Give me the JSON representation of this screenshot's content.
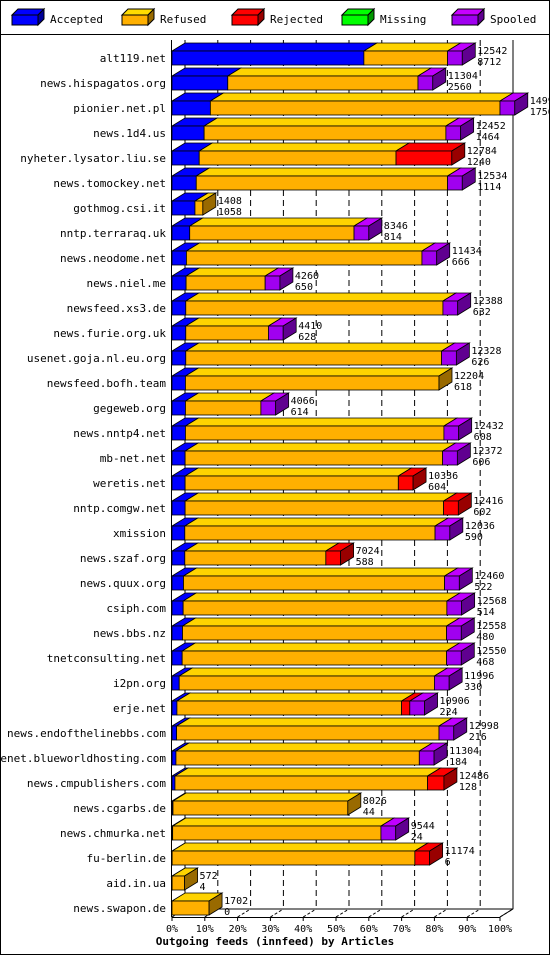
{
  "chart_data": {
    "type": "bar",
    "orientation": "horizontal",
    "stacked": true,
    "xlabel": "Outgoing feeds (innfeed) by Articles",
    "x_ticks": [
      "0%",
      "10%",
      "20%",
      "30%",
      "40%",
      "50%",
      "60%",
      "70%",
      "80%",
      "90%",
      "100%"
    ],
    "xlim": [
      0,
      100
    ],
    "legend_position": "top",
    "series_meta": [
      {
        "name": "Accepted",
        "color": "#0000FF"
      },
      {
        "name": "Refused",
        "color": "#FFB000"
      },
      {
        "name": "Rejected",
        "color": "#FF0000"
      },
      {
        "name": "Missing",
        "color": "#00FF00"
      },
      {
        "name": "Spooled",
        "color": "#A000F0"
      }
    ],
    "rows": [
      {
        "host": "alt119.net",
        "offered": "12542",
        "accepted": "8712",
        "pct": [
          58.5,
          25.5,
          0,
          0,
          4.5
        ]
      },
      {
        "host": "news.hispagatos.org",
        "offered": "11304",
        "accepted": "2560",
        "pct": [
          17.0,
          58.0,
          0,
          0,
          4.5
        ]
      },
      {
        "host": "pionier.net.pl",
        "offered": "14998",
        "accepted": "1756",
        "pct": [
          11.7,
          88.3,
          0,
          0,
          4.5
        ]
      },
      {
        "host": "news.1d4.us",
        "offered": "12452",
        "accepted": "1464",
        "pct": [
          9.8,
          73.7,
          0,
          0,
          4.5
        ]
      },
      {
        "host": "nyheter.lysator.liu.se",
        "offered": "12784",
        "accepted": "1240",
        "pct": [
          8.3,
          60.0,
          17.0,
          0,
          0
        ]
      },
      {
        "host": "news.tomockey.net",
        "offered": "12534",
        "accepted": "1114",
        "pct": [
          7.4,
          76.6,
          0,
          0,
          4.5
        ]
      },
      {
        "host": "gothmog.csi.it",
        "offered": "1408",
        "accepted": "1058",
        "pct": [
          7.0,
          2.4,
          0,
          0,
          0
        ]
      },
      {
        "host": "nntp.terraraq.uk",
        "offered": "8346",
        "accepted": "814",
        "pct": [
          5.4,
          50.1,
          0,
          0,
          4.5
        ]
      },
      {
        "host": "news.neodome.net",
        "offered": "11434",
        "accepted": "666",
        "pct": [
          4.4,
          71.8,
          0,
          0,
          4.5
        ]
      },
      {
        "host": "news.niel.me",
        "offered": "4260",
        "accepted": "650",
        "pct": [
          4.3,
          24.1,
          0,
          0,
          4.5
        ]
      },
      {
        "host": "newsfeed.xs3.de",
        "offered": "12388",
        "accepted": "632",
        "pct": [
          4.2,
          78.4,
          0,
          0,
          4.5
        ]
      },
      {
        "host": "news.furie.org.uk",
        "offered": "4410",
        "accepted": "628",
        "pct": [
          4.2,
          25.2,
          0,
          0,
          4.5
        ]
      },
      {
        "host": "usenet.goja.nl.eu.org",
        "offered": "12328",
        "accepted": "626",
        "pct": [
          4.2,
          78.0,
          0,
          0,
          4.5
        ]
      },
      {
        "host": "newsfeed.bofh.team",
        "offered": "12204",
        "accepted": "618",
        "pct": [
          4.1,
          77.3,
          0,
          0,
          0
        ]
      },
      {
        "host": "gegeweb.org",
        "offered": "4066",
        "accepted": "614",
        "pct": [
          4.1,
          23.0,
          0,
          0,
          4.5
        ]
      },
      {
        "host": "news.nntp4.net",
        "offered": "12432",
        "accepted": "608",
        "pct": [
          4.1,
          78.8,
          0,
          0,
          4.5
        ]
      },
      {
        "host": "mb-net.net",
        "offered": "12372",
        "accepted": "606",
        "pct": [
          4.0,
          78.5,
          0,
          0,
          4.5
        ]
      },
      {
        "host": "weretis.net",
        "offered": "10336",
        "accepted": "604",
        "pct": [
          4.0,
          65.0,
          4.5,
          0,
          0
        ]
      },
      {
        "host": "nntp.comgw.net",
        "offered": "12416",
        "accepted": "602",
        "pct": [
          4.0,
          78.8,
          4.5,
          0,
          0
        ]
      },
      {
        "host": "xmission",
        "offered": "12036",
        "accepted": "590",
        "pct": [
          3.9,
          76.3,
          0,
          0,
          4.5
        ]
      },
      {
        "host": "news.szaf.org",
        "offered": "7024",
        "accepted": "588",
        "pct": [
          3.9,
          43.0,
          4.5,
          0,
          0
        ]
      },
      {
        "host": "news.quux.org",
        "offered": "12460",
        "accepted": "522",
        "pct": [
          3.5,
          79.6,
          0,
          0,
          4.5
        ]
      },
      {
        "host": "csiph.com",
        "offered": "12568",
        "accepted": "514",
        "pct": [
          3.4,
          80.4,
          0,
          0,
          4.5
        ]
      },
      {
        "host": "news.bbs.nz",
        "offered": "12558",
        "accepted": "480",
        "pct": [
          3.2,
          80.5,
          0,
          0,
          4.5
        ]
      },
      {
        "host": "tnetconsulting.net",
        "offered": "12550",
        "accepted": "468",
        "pct": [
          3.1,
          80.6,
          0,
          0,
          4.5
        ]
      },
      {
        "host": "i2pn.org",
        "offered": "11996",
        "accepted": "330",
        "pct": [
          2.2,
          77.8,
          0,
          0,
          4.5
        ]
      },
      {
        "host": "erje.net",
        "offered": "10906",
        "accepted": "224",
        "pct": [
          1.5,
          68.5,
          2.5,
          0,
          4.5
        ]
      },
      {
        "host": "news.endofthelinebbs.com",
        "offered": "12998",
        "accepted": "216",
        "pct": [
          1.4,
          80.0,
          0,
          0,
          4.5
        ]
      },
      {
        "host": "usenet.blueworldhosting.com",
        "offered": "11304",
        "accepted": "184",
        "pct": [
          1.2,
          74.2,
          0,
          0,
          4.5
        ]
      },
      {
        "host": "news.cmpublishers.com",
        "offered": "12486",
        "accepted": "128",
        "pct": [
          0.9,
          77.0,
          5.0,
          0,
          0
        ]
      },
      {
        "host": "news.cgarbs.de",
        "offered": "8026",
        "accepted": "44",
        "pct": [
          0.3,
          53.3,
          0,
          0,
          0
        ]
      },
      {
        "host": "news.chmurka.net",
        "offered": "9544",
        "accepted": "24",
        "pct": [
          0.2,
          63.5,
          0,
          0,
          4.5
        ]
      },
      {
        "host": "fu-berlin.de",
        "offered": "11174",
        "accepted": "6",
        "pct": [
          0.04,
          74.0,
          4.5,
          0,
          0
        ]
      },
      {
        "host": "aid.in.ua",
        "offered": "572",
        "accepted": "4",
        "pct": [
          0.03,
          3.8,
          0,
          0,
          0
        ]
      },
      {
        "host": "news.swapon.de",
        "offered": "1702",
        "accepted": "0",
        "pct": [
          0,
          11.3,
          0,
          0,
          0
        ]
      }
    ]
  }
}
